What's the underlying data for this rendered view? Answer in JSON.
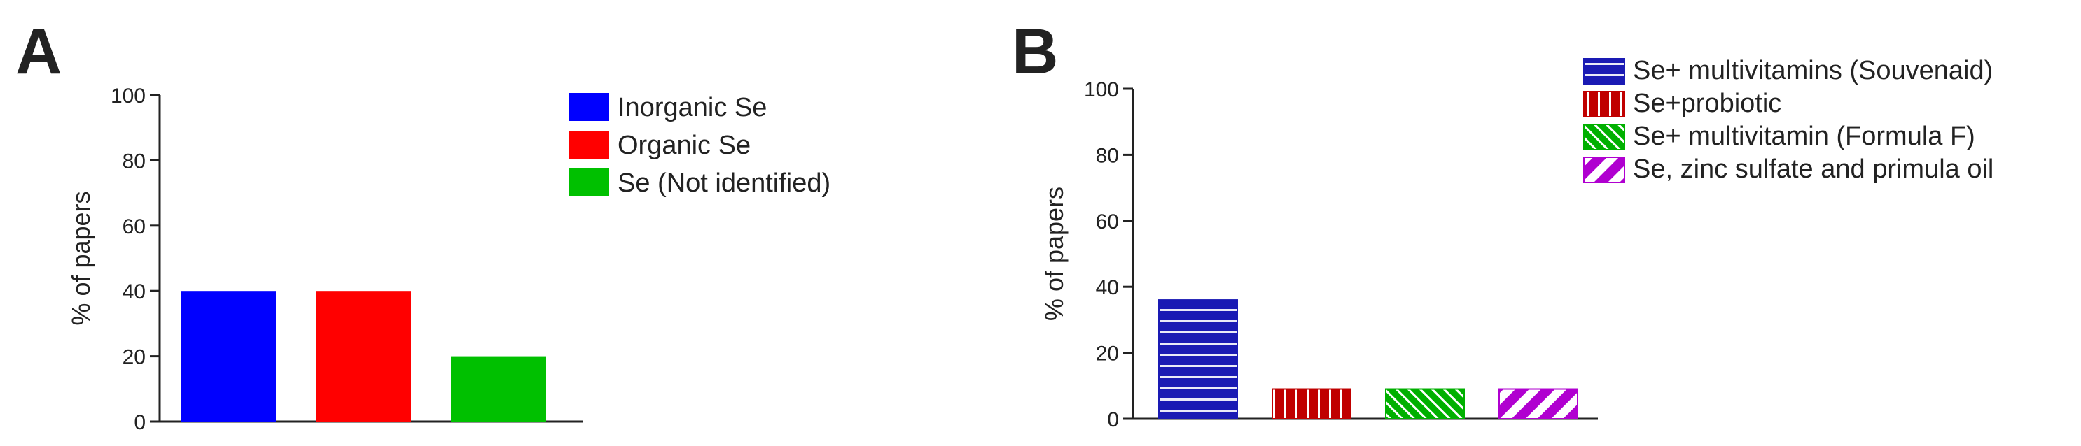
{
  "panels": [
    {
      "panel_label": "A",
      "chart_data": {
        "type": "bar",
        "categories": [
          "Inorganic Se",
          "Organic Se",
          "Se (Not identified)"
        ],
        "values": [
          40,
          40,
          20
        ],
        "ylabel": "% of papers",
        "xlabel": "",
        "ylim": [
          0,
          100
        ],
        "yticks": [
          0,
          20,
          40,
          60,
          80,
          100
        ],
        "grid": false,
        "legend_position": "top-right",
        "colors": [
          "#0000ff",
          "#ff0000",
          "#00c000"
        ],
        "patterns": [
          "solid",
          "solid",
          "solid"
        ]
      }
    },
    {
      "panel_label": "B",
      "chart_data": {
        "type": "bar",
        "categories": [
          "Se+ multivitamins (Souvenaid)",
          "Se+probiotic",
          "Se+ multivitamin (Formula F)",
          "Se, zinc sulfate and primula oil"
        ],
        "values": [
          36,
          9,
          9,
          9
        ],
        "ylabel": "% of papers",
        "xlabel": "",
        "ylim": [
          0,
          100
        ],
        "yticks": [
          0,
          20,
          40,
          60,
          80,
          100
        ],
        "grid": false,
        "legend_position": "top-right",
        "colors": [
          "#1a1ab4",
          "#c00000",
          "#00b000",
          "#b000d0"
        ],
        "patterns": [
          "horizontal-lines",
          "vertical-lines",
          "diagonal-fine",
          "diagonal-wide"
        ]
      }
    }
  ]
}
